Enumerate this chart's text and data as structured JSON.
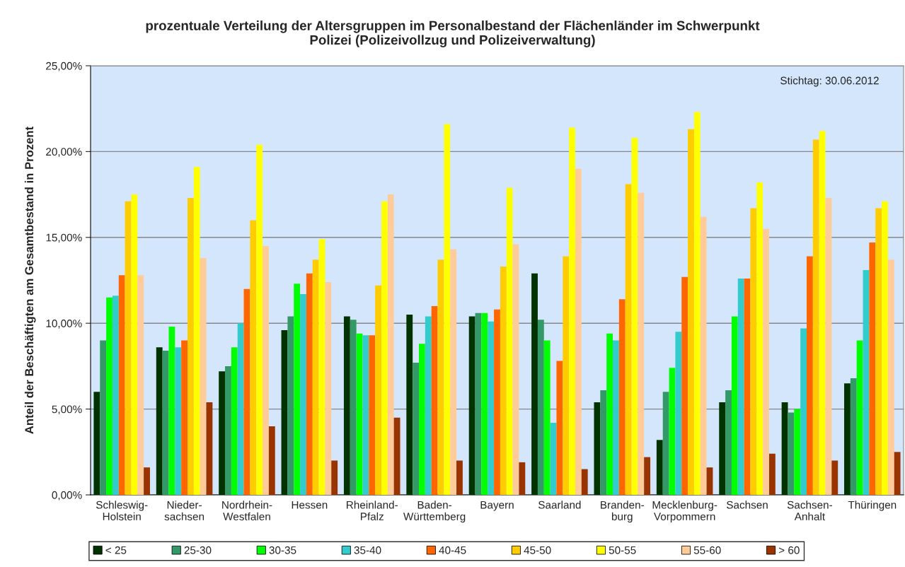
{
  "chart_data": {
    "type": "bar",
    "title": "prozentuale Verteilung der Altersgruppen im Personalbestand der Flächenländer im Schwerpunkt\nPolizei (Polizeivollzug und Polizeiverwaltung)",
    "ylabel": "Anteil der Beschäftigten am Gesamtbestand in Prozent",
    "annotations": [
      "Stichtag: 30.06.2012"
    ],
    "categories": [
      "Schleswig-\nHolstein",
      "Nieder-\nsachsen",
      "Nordrhein-\nWestfalen",
      "Hessen",
      "Rheinland-\nPfalz",
      "Baden-\nWürttemberg",
      "Bayern",
      "Saarland",
      "Branden-\nburg",
      "Mecklenburg-\nVorpommern",
      "Sachsen",
      "Sachsen-\nAnhalt",
      "Thüringen"
    ],
    "series": [
      {
        "name": "< 25",
        "color": "#003300",
        "values": [
          6.0,
          8.6,
          7.2,
          9.6,
          10.4,
          10.5,
          10.4,
          12.9,
          5.4,
          3.2,
          5.4,
          5.4,
          6.5
        ]
      },
      {
        "name": "25-30",
        "color": "#339966",
        "values": [
          9.0,
          8.4,
          7.5,
          10.4,
          10.2,
          7.7,
          10.6,
          10.2,
          6.1,
          6.0,
          6.1,
          4.8,
          6.8
        ]
      },
      {
        "name": "30-35",
        "color": "#00ff00",
        "values": [
          11.5,
          9.8,
          8.6,
          12.3,
          9.4,
          8.8,
          10.6,
          9.0,
          9.4,
          7.4,
          10.4,
          5.0,
          9.0
        ]
      },
      {
        "name": "35-40",
        "color": "#33cccc",
        "values": [
          11.6,
          8.6,
          10.0,
          11.7,
          9.3,
          10.4,
          10.1,
          4.2,
          9.0,
          9.5,
          12.6,
          9.7,
          13.1
        ]
      },
      {
        "name": "40-45",
        "color": "#ff6600",
        "values": [
          12.8,
          9.0,
          12.0,
          12.9,
          9.3,
          11.0,
          10.8,
          7.8,
          11.4,
          12.7,
          12.6,
          13.9,
          14.7
        ]
      },
      {
        "name": "45-50",
        "color": "#ffcc00",
        "values": [
          17.1,
          17.3,
          16.0,
          13.7,
          12.2,
          13.7,
          13.3,
          13.9,
          18.1,
          21.3,
          16.7,
          20.7,
          16.7
        ]
      },
      {
        "name": "50-55",
        "color": "#ffff00",
        "values": [
          17.5,
          19.1,
          20.4,
          14.9,
          17.1,
          21.6,
          17.9,
          21.4,
          20.8,
          22.3,
          18.2,
          21.2,
          17.1
        ]
      },
      {
        "name": "55-60",
        "color": "#ffcc99",
        "values": [
          12.8,
          13.8,
          14.5,
          12.4,
          17.5,
          14.3,
          14.6,
          19.0,
          17.6,
          16.2,
          15.5,
          17.3,
          13.7
        ]
      },
      {
        "name": "> 60",
        "color": "#993300",
        "values": [
          1.6,
          5.4,
          4.0,
          2.0,
          4.5,
          2.0,
          1.9,
          1.5,
          2.2,
          1.6,
          2.4,
          2.0,
          2.5
        ]
      }
    ],
    "ylim": [
      0,
      25
    ],
    "yticks": [
      {
        "value": 0,
        "label": "0,00%"
      },
      {
        "value": 5,
        "label": "5,00%"
      },
      {
        "value": 10,
        "label": "10,00%"
      },
      {
        "value": 15,
        "label": "15,00%"
      },
      {
        "value": 20,
        "label": "20,00%"
      },
      {
        "value": 25,
        "label": "25,00%"
      }
    ],
    "grid": "y",
    "legend": "bottom"
  }
}
